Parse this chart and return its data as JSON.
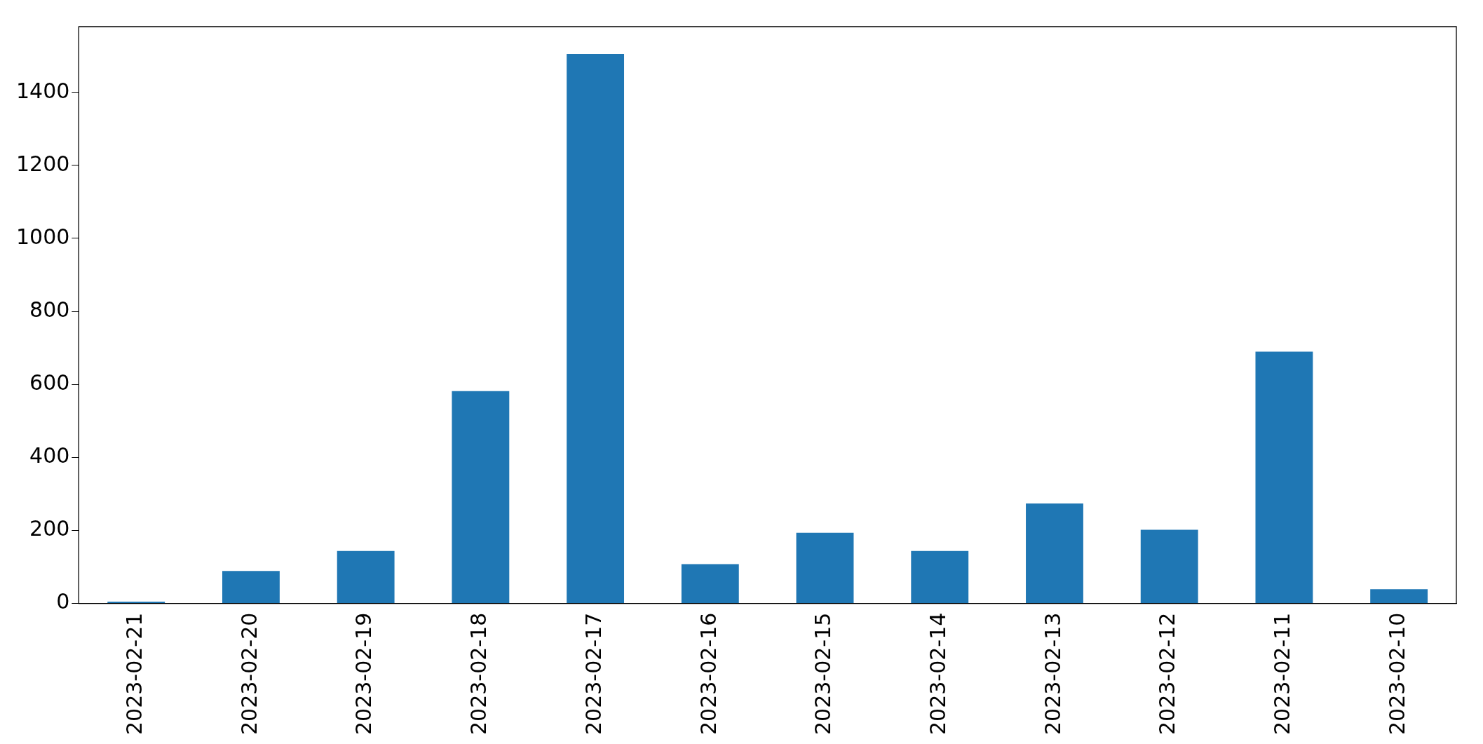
{
  "chart_data": {
    "type": "bar",
    "categories": [
      "2023-02-21",
      "2023-02-20",
      "2023-02-19",
      "2023-02-18",
      "2023-02-17",
      "2023-02-16",
      "2023-02-15",
      "2023-02-14",
      "2023-02-13",
      "2023-02-12",
      "2023-02-11",
      "2023-02-10"
    ],
    "values": [
      5,
      89,
      144,
      582,
      1505,
      108,
      194,
      144,
      274,
      202,
      690,
      39
    ],
    "color": "#1f77b4",
    "ylim": [
      0,
      1580
    ],
    "yticks": [
      0,
      200,
      400,
      600,
      800,
      1000,
      1200,
      1400
    ],
    "grid": false,
    "legend": false
  }
}
